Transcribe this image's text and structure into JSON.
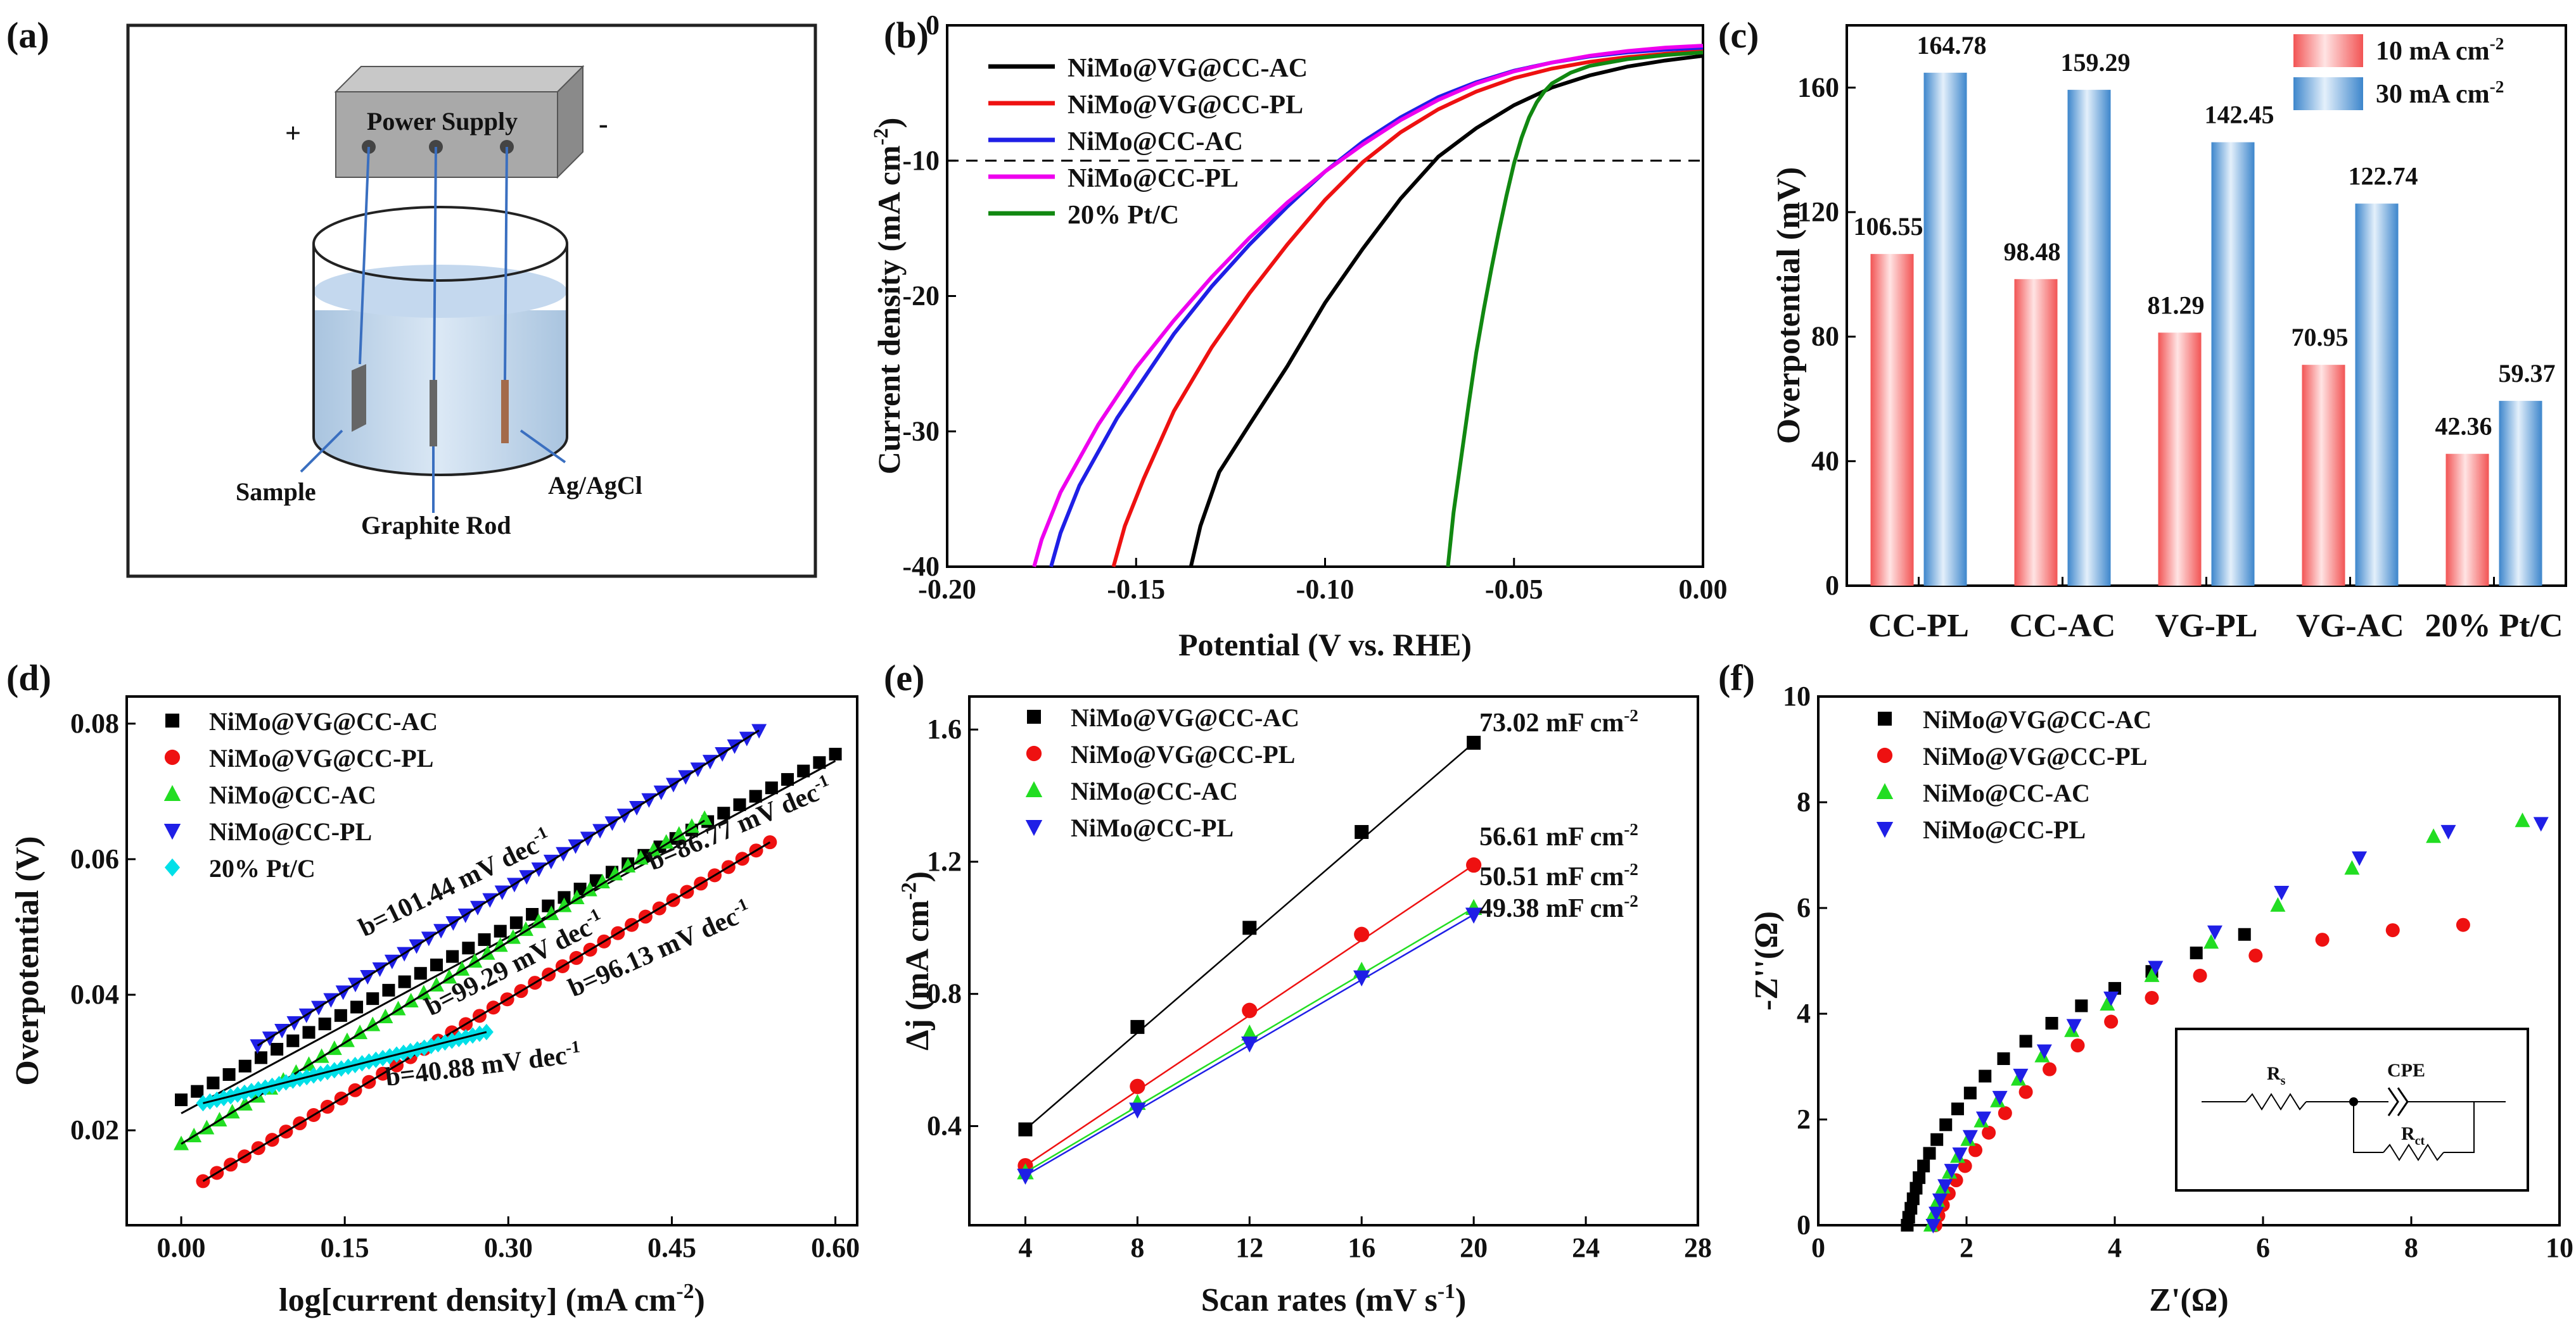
{
  "colors": {
    "black": "#000000",
    "red": "#ee1111",
    "blue": "#1f1fe6",
    "magenta": "#ee00ee",
    "green": "#118811",
    "lime": "#22dd22",
    "cyan": "#00e0e8",
    "bar_red": "#f25858",
    "bar_blue": "#4a8fd0"
  },
  "panel_a": {
    "label": "(a)",
    "power_supply": "Power Supply",
    "plus": "+",
    "minus": "-",
    "sample": "Sample",
    "graphite_rod": "Graphite Rod",
    "reference": "Ag/AgCl"
  },
  "panel_f_inset": {
    "rs": "R",
    "rs_sub": "s",
    "cpe": "CPE",
    "rct": "R",
    "rct_sub": "ct"
  },
  "chart_data": [
    {
      "panel": "(b)",
      "type": "line",
      "xlabel": "Potential (V vs. RHE)",
      "ylabel": "Current density (mA cm⁻²)",
      "xlim": [
        -0.2,
        0.0
      ],
      "ylim": [
        -40,
        0
      ],
      "xticks": [
        "-0.20",
        "-0.15",
        "-0.10",
        "-0.05",
        "0.00"
      ],
      "yticks": [
        "-40",
        "-30",
        "-20",
        "-10",
        "0"
      ],
      "reference_line_y": -10,
      "legend": "top-left",
      "series": [
        {
          "name": "NiMo@VG@CC-AC",
          "color": "black",
          "x": [
            -0.1355,
            -0.133,
            -0.128,
            -0.12,
            -0.11,
            -0.1,
            -0.09,
            -0.08,
            -0.07,
            -0.06,
            -0.05,
            -0.04,
            -0.03,
            -0.02,
            -0.01,
            0.0
          ],
          "y": [
            -40,
            -37,
            -33,
            -29.5,
            -25.2,
            -20.5,
            -16.5,
            -12.8,
            -9.7,
            -7.6,
            -5.9,
            -4.6,
            -3.7,
            -3.05,
            -2.6,
            -2.25
          ]
        },
        {
          "name": "NiMo@VG@CC-PL",
          "color": "red",
          "x": [
            -0.156,
            -0.153,
            -0.148,
            -0.14,
            -0.13,
            -0.12,
            -0.11,
            -0.1,
            -0.09,
            -0.08,
            -0.07,
            -0.06,
            -0.05,
            -0.04,
            -0.03,
            -0.02,
            -0.01,
            0.0
          ],
          "y": [
            -40,
            -37,
            -33.5,
            -28.5,
            -23.8,
            -19.8,
            -16.2,
            -12.9,
            -10.1,
            -7.9,
            -6.2,
            -4.9,
            -3.9,
            -3.2,
            -2.7,
            -2.35,
            -2.1,
            -1.9
          ]
        },
        {
          "name": "NiMo@CC-AC",
          "color": "blue",
          "x": [
            -0.1725,
            -0.17,
            -0.165,
            -0.155,
            -0.14,
            -0.13,
            -0.12,
            -0.11,
            -0.1,
            -0.09,
            -0.08,
            -0.07,
            -0.06,
            -0.05,
            -0.04,
            -0.03,
            -0.02,
            -0.01,
            0.0
          ],
          "y": [
            -40,
            -37.5,
            -34,
            -29,
            -22.8,
            -19.3,
            -16.2,
            -13.4,
            -10.8,
            -8.6,
            -6.8,
            -5.3,
            -4.2,
            -3.35,
            -2.75,
            -2.3,
            -2.0,
            -1.8,
            -1.65
          ]
        },
        {
          "name": "NiMo@CC-PL",
          "color": "magenta",
          "x": [
            -0.177,
            -0.175,
            -0.17,
            -0.16,
            -0.15,
            -0.14,
            -0.13,
            -0.12,
            -0.11,
            -0.1,
            -0.09,
            -0.08,
            -0.07,
            -0.06,
            -0.05,
            -0.04,
            -0.03,
            -0.02,
            -0.01,
            0.0
          ],
          "y": [
            -40,
            -38,
            -34.5,
            -29.5,
            -25.3,
            -21.8,
            -18.6,
            -15.7,
            -13.1,
            -10.8,
            -8.8,
            -7.0,
            -5.5,
            -4.3,
            -3.4,
            -2.75,
            -2.25,
            -1.9,
            -1.65,
            -1.5
          ]
        },
        {
          "name": "20% Pt/C",
          "color": "green",
          "x": [
            -0.0675,
            -0.066,
            -0.064,
            -0.062,
            -0.06,
            -0.058,
            -0.056,
            -0.054,
            -0.052,
            -0.05,
            -0.048,
            -0.046,
            -0.044,
            -0.042,
            -0.04,
            -0.035,
            -0.03,
            -0.02,
            -0.01,
            0.0
          ],
          "y": [
            -40,
            -36,
            -32,
            -28,
            -24.2,
            -21,
            -18,
            -15.2,
            -12.6,
            -10.2,
            -8.3,
            -6.8,
            -5.7,
            -4.9,
            -4.3,
            -3.5,
            -3.0,
            -2.5,
            -2.2,
            -2.0
          ]
        }
      ]
    },
    {
      "panel": "(c)",
      "type": "bar",
      "ylabel": "Overpotential (mV)",
      "categories": [
        "CC-PL",
        "CC-AC",
        "VG-PL",
        "VG-AC",
        "20% Pt/C"
      ],
      "ylim": [
        0,
        180
      ],
      "yticks": [
        "0",
        "40",
        "80",
        "120",
        "160"
      ],
      "legend": "top-right",
      "series": [
        {
          "name": "10 mA cm",
          "name_sup": "-2",
          "color": "bar_red",
          "values": [
            106.55,
            98.48,
            81.29,
            70.95,
            42.36
          ],
          "labels": [
            "106.55",
            "98.48",
            "81.29",
            "70.95",
            "42.36"
          ]
        },
        {
          "name": "30 mA cm",
          "name_sup": "-2",
          "color": "bar_blue",
          "values": [
            164.78,
            159.29,
            142.45,
            122.74,
            59.37
          ],
          "labels": [
            "164.78",
            "159.29",
            "142.45",
            "122.74",
            "59.37"
          ]
        }
      ]
    },
    {
      "panel": "(d)",
      "type": "scatter",
      "xlabel": "log[current density] (mA cm⁻²)",
      "ylabel": "Overpotential (V)",
      "xlim": [
        -0.05,
        0.62
      ],
      "ylim": [
        0.006,
        0.084
      ],
      "xticks": [
        "0.00",
        "0.15",
        "0.30",
        "0.45",
        "0.60"
      ],
      "yticks": [
        "0.02",
        "0.04",
        "0.06",
        "0.08"
      ],
      "legend": "top-left",
      "series": [
        {
          "name": "NiMo@VG@CC-AC",
          "color": "black",
          "marker": "square",
          "x_range": [
            0.0,
            0.6
          ],
          "y_range": [
            0.0245,
            0.0755
          ],
          "fit": [
            0.0,
            0.0225,
            0.6,
            0.0745
          ],
          "annotation": "b=86.77 mV dec",
          "annotation_sup": "-1"
        },
        {
          "name": "NiMo@VG@CC-PL",
          "color": "red",
          "marker": "circle",
          "x_range": [
            0.02,
            0.54
          ],
          "y_range": [
            0.0125,
            0.0625
          ],
          "fit": [
            0.02,
            0.0125,
            0.54,
            0.0625
          ],
          "annotation": "b=96.13 mV dec",
          "annotation_sup": "-1"
        },
        {
          "name": "NiMo@CC-AC",
          "color": "lime",
          "marker": "triangle-up",
          "x_range": [
            0.0,
            0.48
          ],
          "y_range": [
            0.018,
            0.066
          ],
          "fit": [
            0.0,
            0.018,
            0.48,
            0.0657
          ],
          "annotation": "b=99.29 mV dec",
          "annotation_sup": "-1"
        },
        {
          "name": "NiMo@CC-PL",
          "color": "blue",
          "marker": "triangle-down",
          "x_range": [
            0.07,
            0.53
          ],
          "y_range": [
            0.0325,
            0.079
          ],
          "fit": [
            0.07,
            0.0325,
            0.53,
            0.079
          ],
          "annotation": "b=101.44 mV dec",
          "annotation_sup": "-1"
        },
        {
          "name": "20% Pt/C",
          "color": "cyan",
          "marker": "diamond",
          "x_range": [
            0.02,
            0.28
          ],
          "y_range": [
            0.024,
            0.0345
          ],
          "fit": [
            0.02,
            0.024,
            0.28,
            0.0345
          ],
          "annotation": "b=40.88 mV dec",
          "annotation_sup": "-1"
        }
      ]
    },
    {
      "panel": "(e)",
      "type": "scatter",
      "xlabel": "Scan rates (mV s⁻¹)",
      "ylabel": "Δj (mA cm⁻²)",
      "xlim": [
        2,
        28
      ],
      "ylim": [
        0.1,
        1.7
      ],
      "xticks": [
        "4",
        "8",
        "12",
        "16",
        "20",
        "24",
        "28"
      ],
      "yticks": [
        "0.4",
        "0.8",
        "1.2",
        "1.6"
      ],
      "legend": "top-left",
      "x": [
        4,
        8,
        12,
        16,
        20
      ],
      "series": [
        {
          "name": "NiMo@VG@CC-AC",
          "color": "black",
          "marker": "square",
          "values": [
            0.39,
            0.7,
            1.0,
            1.29,
            1.56
          ],
          "annotation": "73.02 mF cm",
          "annotation_sup": "-2"
        },
        {
          "name": "NiMo@VG@CC-PL",
          "color": "red",
          "marker": "circle",
          "values": [
            0.28,
            0.52,
            0.75,
            0.98,
            1.19
          ],
          "annotation": "56.61 mF cm",
          "annotation_sup": "-2"
        },
        {
          "name": "NiMo@CC-AC",
          "color": "lime",
          "marker": "triangle-up",
          "values": [
            0.26,
            0.47,
            0.68,
            0.87,
            1.06
          ],
          "annotation": "50.51 mF cm",
          "annotation_sup": "-2"
        },
        {
          "name": "NiMo@CC-PL",
          "color": "blue",
          "marker": "triangle-down",
          "values": [
            0.25,
            0.45,
            0.65,
            0.85,
            1.04
          ],
          "annotation": "49.38 mF cm",
          "annotation_sup": "-2"
        }
      ]
    },
    {
      "panel": "(f)",
      "type": "scatter",
      "xlabel": "Z'(Ω)",
      "ylabel": "-Z''(Ω)",
      "xlim": [
        0,
        10
      ],
      "ylim": [
        0,
        10
      ],
      "xticks": [
        "0",
        "2",
        "4",
        "6",
        "8",
        "10"
      ],
      "yticks": [
        "0",
        "2",
        "4",
        "6",
        "8",
        "10"
      ],
      "legend": "top-left",
      "series": [
        {
          "name": "NiMo@VG@CC-AC",
          "color": "black",
          "marker": "square",
          "x": [
            1.2,
            1.22,
            1.25,
            1.28,
            1.32,
            1.36,
            1.42,
            1.5,
            1.6,
            1.72,
            1.88,
            2.05,
            2.25,
            2.5,
            2.8,
            3.15,
            3.55,
            4.0,
            4.5,
            5.1,
            5.75
          ],
          "y": [
            0.0,
            0.15,
            0.32,
            0.5,
            0.7,
            0.9,
            1.12,
            1.36,
            1.62,
            1.9,
            2.2,
            2.5,
            2.82,
            3.15,
            3.48,
            3.82,
            4.15,
            4.48,
            4.8,
            5.15,
            5.5
          ]
        },
        {
          "name": "NiMo@VG@CC-PL",
          "color": "red",
          "marker": "circle",
          "x": [
            1.58,
            1.62,
            1.68,
            1.76,
            1.86,
            1.98,
            2.12,
            2.3,
            2.52,
            2.8,
            3.12,
            3.5,
            3.95,
            4.5,
            5.15,
            5.9,
            6.8,
            7.75,
            8.7
          ],
          "y": [
            0.0,
            0.18,
            0.38,
            0.6,
            0.85,
            1.12,
            1.42,
            1.75,
            2.12,
            2.52,
            2.95,
            3.4,
            3.85,
            4.3,
            4.72,
            5.1,
            5.4,
            5.58,
            5.68
          ]
        },
        {
          "name": "NiMo@CC-AC",
          "color": "lime",
          "marker": "triangle-up",
          "x": [
            1.52,
            1.56,
            1.61,
            1.68,
            1.77,
            1.88,
            2.02,
            2.2,
            2.42,
            2.7,
            3.02,
            3.42,
            3.9,
            4.5,
            5.3,
            6.2,
            7.2,
            8.3,
            9.5
          ],
          "y": [
            0.0,
            0.22,
            0.46,
            0.72,
            1.0,
            1.3,
            1.62,
            1.97,
            2.35,
            2.76,
            3.2,
            3.68,
            4.18,
            4.72,
            5.35,
            6.05,
            6.75,
            7.35,
            7.65
          ]
        },
        {
          "name": "NiMo@CC-PL",
          "color": "blue",
          "marker": "triangle-down",
          "x": [
            1.55,
            1.59,
            1.64,
            1.71,
            1.8,
            1.91,
            2.05,
            2.23,
            2.45,
            2.73,
            3.05,
            3.45,
            3.95,
            4.55,
            5.35,
            6.25,
            7.3,
            8.5,
            9.75
          ],
          "y": [
            0.0,
            0.23,
            0.48,
            0.75,
            1.04,
            1.35,
            1.68,
            2.03,
            2.42,
            2.84,
            3.3,
            3.78,
            4.3,
            4.88,
            5.55,
            6.3,
            6.95,
            7.45,
            7.6
          ]
        }
      ]
    }
  ]
}
